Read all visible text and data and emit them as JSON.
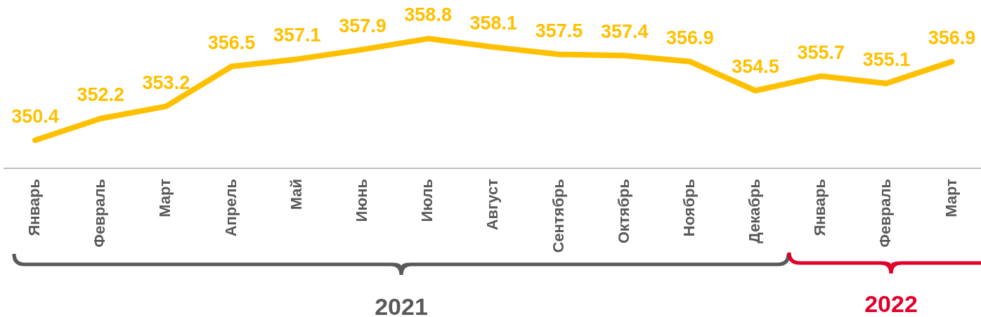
{
  "chart_data": {
    "type": "line",
    "categories": [
      "Январь",
      "Февраль",
      "Март",
      "Апрель",
      "Май",
      "Июнь",
      "Июль",
      "Август",
      "Сентябрь",
      "Октябрь",
      "Ноябрь",
      "Декабрь",
      "Январь",
      "Февраль",
      "Март"
    ],
    "series": [
      {
        "color": "#ffc000",
        "values": [
          350.4,
          352.2,
          353.2,
          356.5,
          357.1,
          357.9,
          358.8,
          358.1,
          357.5,
          357.4,
          356.9,
          354.5,
          355.7,
          355.1,
          356.9
        ]
      }
    ],
    "data_labels": true,
    "marker": "none",
    "line_style": "solid",
    "tick_labels": "x",
    "annotations": [
      "2021",
      "2022"
    ]
  }
}
